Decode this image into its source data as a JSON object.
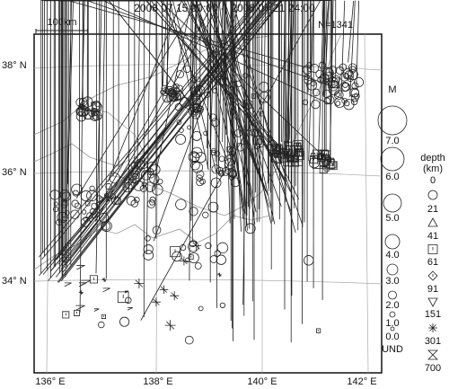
{
  "header": {
    "period": "2008 07 15 00:00 -- 2008 07 21 24:00",
    "count": "N=1341",
    "scale": "100km"
  },
  "axes": {
    "latitude": [
      "38° N",
      "36° N",
      "34° N"
    ],
    "longitude": [
      "136° E",
      "138° E",
      "140° E",
      "142° E"
    ]
  },
  "legend": {
    "magnitude_title": "M",
    "magnitudes": [
      "7.0",
      "6.0",
      "5.0",
      "4.0",
      "3.0",
      "2.0",
      "1.0",
      "0.0",
      "UND"
    ],
    "depth_title": "depth",
    "depth_unit": "(km)",
    "depths": [
      "0",
      "21",
      "41",
      "61",
      "91",
      "151",
      "301",
      "700"
    ]
  }
}
